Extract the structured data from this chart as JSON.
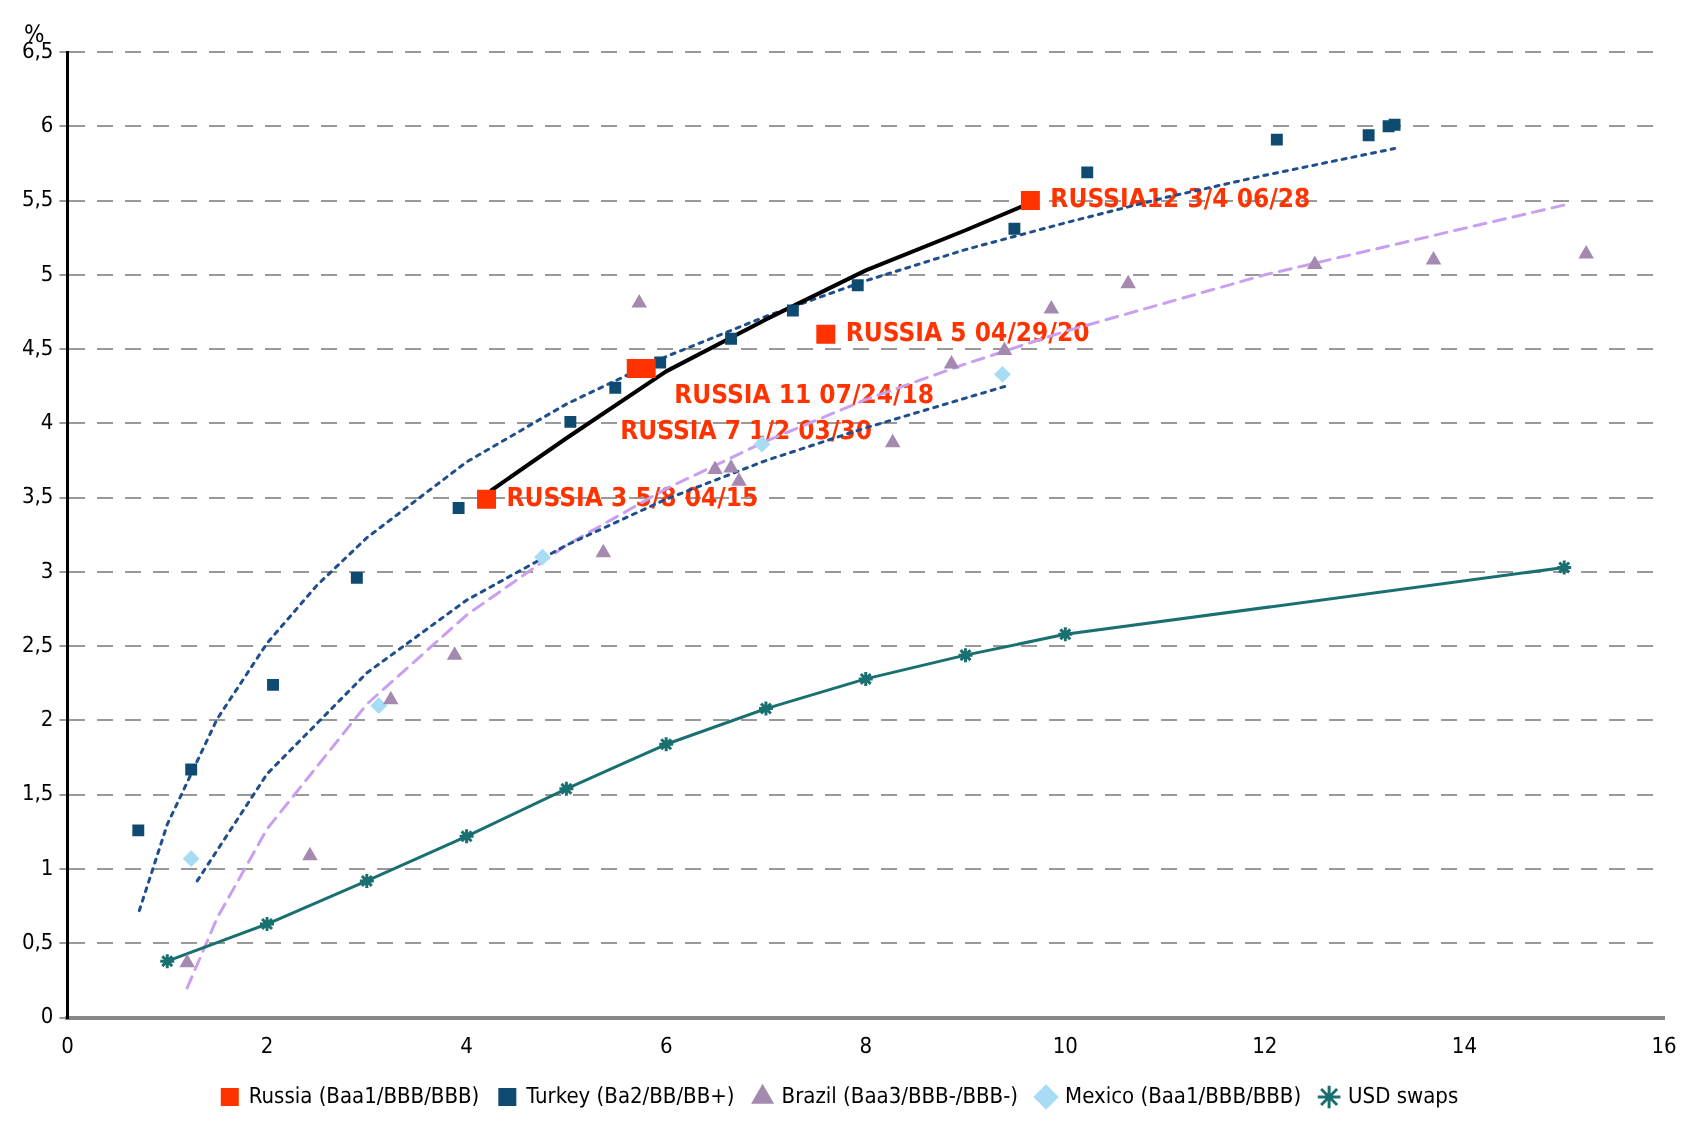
{
  "chart_data": {
    "type": "scatter",
    "ylabel": "%",
    "xlim": [
      0,
      16
    ],
    "xticks": [
      0,
      2,
      4,
      6,
      8,
      10,
      12,
      14,
      16
    ],
    "ylim": [
      0,
      6.5
    ],
    "yticks": [
      0,
      {
        "value": 0.5,
        "label": "0,5"
      },
      1,
      {
        "value": 1.5,
        "label": "1,5"
      },
      2,
      {
        "value": 2.5,
        "label": "2,5"
      },
      3,
      {
        "value": 3.5,
        "label": "3,5"
      },
      4,
      {
        "value": 4.5,
        "label": "4,5"
      },
      5,
      {
        "value": 5.5,
        "label": "5,5"
      },
      6,
      {
        "value": 6.5,
        "label": "6,5"
      }
    ],
    "grid": "y",
    "legend": "bottom",
    "series": [
      {
        "name": "Russia (Baa1/BBB/BBB)",
        "marker": "square",
        "color": "#ff3300",
        "x": [
          4.2,
          5.8,
          5.7,
          7.6,
          9.65
        ],
        "values": [
          3.49,
          4.37,
          4.37,
          4.6,
          5.5
        ]
      },
      {
        "name": "Turkey (Ba2/BB/BB+)",
        "marker": "square",
        "color": "#0f4a70",
        "x": [
          0.71,
          1.24,
          2.06,
          2.9,
          3.92,
          5.04,
          5.49,
          5.94,
          6.65,
          7.27,
          7.92,
          9.49,
          10.22,
          12.12,
          13.04,
          13.24,
          13.3
        ],
        "values": [
          1.26,
          1.67,
          2.24,
          2.96,
          3.43,
          4.01,
          4.24,
          4.41,
          4.57,
          4.76,
          4.93,
          5.31,
          5.69,
          5.91,
          5.94,
          6.0,
          6.01
        ]
      },
      {
        "name": "Brazil (Baa3/BBB-/BBB-)",
        "marker": "triangle",
        "color": "#a58ab0",
        "x": [
          1.2,
          2.43,
          3.24,
          3.88,
          5.37,
          5.73,
          6.49,
          6.65,
          6.73,
          8.27,
          8.86,
          9.39,
          9.86,
          10.63,
          12.5,
          13.69,
          15.22
        ],
        "values": [
          0.37,
          1.09,
          2.14,
          2.44,
          3.13,
          4.81,
          3.69,
          3.7,
          3.61,
          3.87,
          4.4,
          4.49,
          4.77,
          4.94,
          5.07,
          5.1,
          5.14
        ]
      },
      {
        "name": "Mexico (Baa1/BBB/BBB)",
        "marker": "diamond",
        "color": "#a8dcf5",
        "x": [
          1.24,
          3.12,
          4.76,
          6.96,
          9.37
        ],
        "values": [
          1.07,
          2.1,
          3.1,
          3.86,
          4.33
        ]
      },
      {
        "name": "USD swaps",
        "type": "line",
        "marker": "cross",
        "line_style": "solid",
        "color": "#1a7070",
        "x": [
          1,
          2,
          3,
          4,
          5,
          6,
          7,
          8,
          9,
          10,
          15
        ],
        "values": [
          0.38,
          0.63,
          0.92,
          1.22,
          1.54,
          1.84,
          2.08,
          2.28,
          2.44,
          2.58,
          3.03
        ]
      },
      {
        "type": "line",
        "marker": "none",
        "line_style": "solid",
        "color": "#000000",
        "x": [
          4.25,
          5,
          6,
          7,
          8,
          9,
          9.6
        ],
        "values": [
          3.55,
          3.9,
          4.35,
          4.7,
          5.03,
          5.3,
          5.47
        ]
      },
      {
        "type": "line",
        "marker": "none",
        "line_style": "dotted",
        "color": "#1f4e8c",
        "x": [
          0.72,
          1,
          1.5,
          2,
          2.5,
          3,
          4,
          5,
          6,
          7,
          8,
          9,
          10,
          11,
          12,
          13.3
        ],
        "values": [
          0.72,
          1.3,
          2.01,
          2.52,
          2.91,
          3.23,
          3.74,
          4.13,
          4.45,
          4.72,
          4.96,
          5.17,
          5.35,
          5.52,
          5.67,
          5.85
        ]
      },
      {
        "type": "line",
        "marker": "none",
        "line_style": "dotted",
        "color": "#1f4e8c",
        "x": [
          1.3,
          2,
          3,
          4,
          5,
          6,
          7,
          8,
          9.4
        ],
        "values": [
          0.92,
          1.64,
          2.32,
          2.81,
          3.18,
          3.49,
          3.75,
          3.97,
          4.25
        ]
      },
      {
        "type": "line",
        "marker": "none",
        "line_style": "dashed",
        "color": "#c9a0f0",
        "x": [
          1.2,
          1.5,
          2,
          3,
          4,
          5,
          6,
          7,
          8,
          9,
          10,
          12,
          15
        ],
        "values": [
          0.2,
          0.67,
          1.27,
          2.11,
          2.71,
          3.18,
          3.56,
          3.88,
          4.16,
          4.4,
          4.62,
          5.0,
          5.47
        ]
      }
    ],
    "annotations": [
      {
        "text": "RUSSIA 3 5/8 04/15",
        "x": 4.2,
        "y": 3.49
      },
      {
        "text": "RUSSIA 11 07/24/18",
        "x": 5.8,
        "y": 4.37
      },
      {
        "text": "RUSSIA 7 1/2 03/30",
        "x": 5.7,
        "y": 4.37
      },
      {
        "text": "RUSSIA 5 04/29/20",
        "x": 7.6,
        "y": 4.6
      },
      {
        "text": "RUSSIA12 3/4 06/28",
        "x": 9.65,
        "y": 5.5
      }
    ]
  }
}
